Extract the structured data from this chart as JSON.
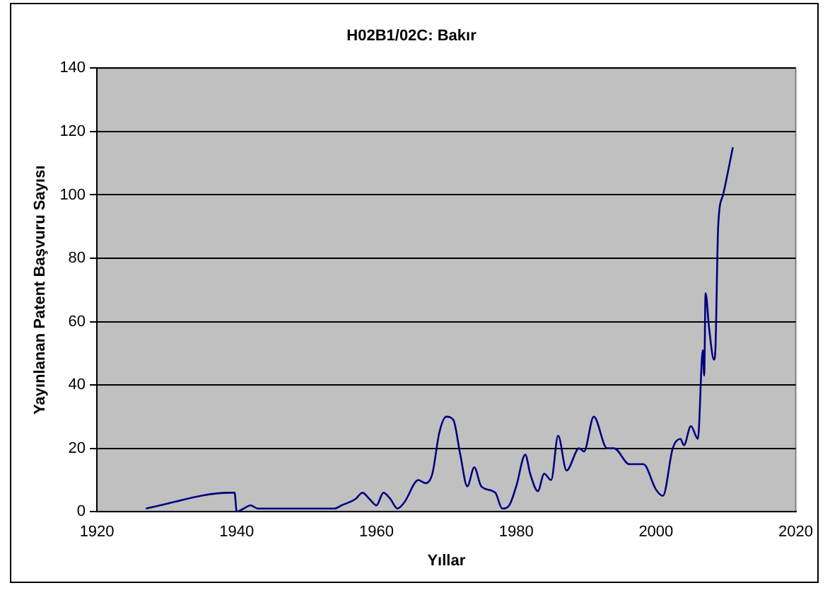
{
  "chart_data": {
    "type": "line",
    "title": "H02B1/02C: Bakır",
    "xlabel": "Yıllar",
    "ylabel": "Yayınlanan Patent Başvuru Sayısı",
    "xlim": [
      1920,
      2020
    ],
    "xticks": [
      1920,
      1940,
      1960,
      1980,
      2000,
      2020
    ],
    "ylim": [
      0,
      140
    ],
    "yticks": [
      0,
      20,
      40,
      60,
      80,
      100,
      120,
      140
    ],
    "grid": "y",
    "legend": false,
    "marker": "none",
    "series": [
      {
        "color": "#000080",
        "x": [
          1927,
          1939,
          1939.7,
          1940,
          1941,
          1942,
          1943,
          1954,
          1955,
          1957,
          1958,
          1959,
          1960,
          1961,
          1962,
          1963,
          1964,
          1966,
          1967,
          1968,
          1969,
          1970,
          1971,
          1972,
          1973,
          1974,
          1975,
          1977,
          1978,
          1979,
          1980,
          1981.3,
          1982,
          1983.1,
          1984,
          1985,
          1986,
          1987.2,
          1989,
          1989.7,
          1991.1,
          1993,
          1994,
          1996.2,
          1998.2,
          2000,
          2001,
          2002.4,
          2003.5,
          2004,
          2005,
          2006,
          2006.7,
          2006.9,
          2007.1,
          2007.6,
          2008.3,
          2008.5,
          2008.9,
          2009.6,
          2011
        ],
        "values": [
          1,
          6,
          6,
          0,
          1,
          2,
          1,
          1,
          2,
          4,
          6,
          4,
          2,
          6,
          4,
          1,
          3,
          10,
          9,
          12,
          25,
          30,
          29,
          18,
          8,
          14,
          8,
          6,
          1,
          2,
          8,
          18,
          12,
          6.5,
          12,
          10,
          24,
          13,
          20,
          19,
          30,
          20,
          20,
          15,
          15,
          7,
          5,
          20,
          23,
          21,
          27,
          23,
          51,
          43,
          69,
          58,
          48,
          51,
          90,
          100,
          115
        ]
      }
    ]
  }
}
